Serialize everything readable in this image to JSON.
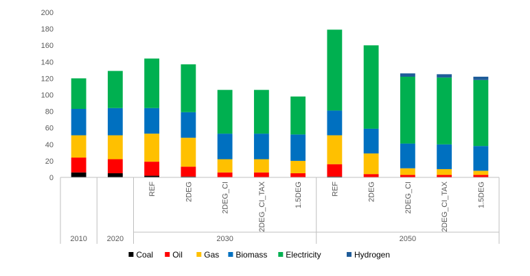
{
  "chart_data": {
    "type": "bar",
    "stacked": true,
    "title": "",
    "xlabel": "",
    "ylabel": "",
    "ylim": [
      0,
      200
    ],
    "yticks": [
      0,
      20,
      40,
      60,
      80,
      100,
      120,
      140,
      160,
      180,
      200
    ],
    "grid": false,
    "legend_position": "bottom",
    "groups": [
      {
        "label": "2010",
        "categories": [
          ""
        ]
      },
      {
        "label": "2020",
        "categories": [
          ""
        ]
      },
      {
        "label": "2030",
        "categories": [
          "REF",
          "2DEG",
          "2DEG_CI",
          "2DEG_CI_TAX",
          "1.5DEG"
        ]
      },
      {
        "label": "2050",
        "categories": [
          "REF",
          "2DEG",
          "2DEG_CI",
          "2DEG_CI_TAX",
          "1.5DEG"
        ]
      }
    ],
    "series": [
      {
        "name": "Coal",
        "color": "#000000",
        "values": [
          6,
          5,
          2,
          1,
          0,
          0,
          0,
          1,
          0,
          0,
          0,
          0
        ]
      },
      {
        "name": "Oil",
        "color": "#ff0000",
        "values": [
          18,
          17,
          17,
          12,
          6,
          6,
          5,
          15,
          4,
          3,
          3,
          3
        ]
      },
      {
        "name": "Gas",
        "color": "#ffc000",
        "values": [
          27,
          29,
          34,
          35,
          16,
          16,
          15,
          35,
          25,
          8,
          7,
          5
        ]
      },
      {
        "name": "Biomass",
        "color": "#0070c0",
        "values": [
          32,
          33,
          31,
          31,
          31,
          31,
          32,
          30,
          30,
          30,
          30,
          30
        ]
      },
      {
        "name": "Electricity",
        "color": "#00b050",
        "values": [
          37,
          45,
          60,
          58,
          53,
          53,
          46,
          98,
          101,
          81,
          81,
          80
        ]
      },
      {
        "name": "Hydrogen",
        "color": "#1f5c99",
        "values": [
          0,
          0,
          0,
          0,
          0,
          0,
          0,
          0,
          0,
          4,
          4,
          4
        ]
      }
    ]
  }
}
